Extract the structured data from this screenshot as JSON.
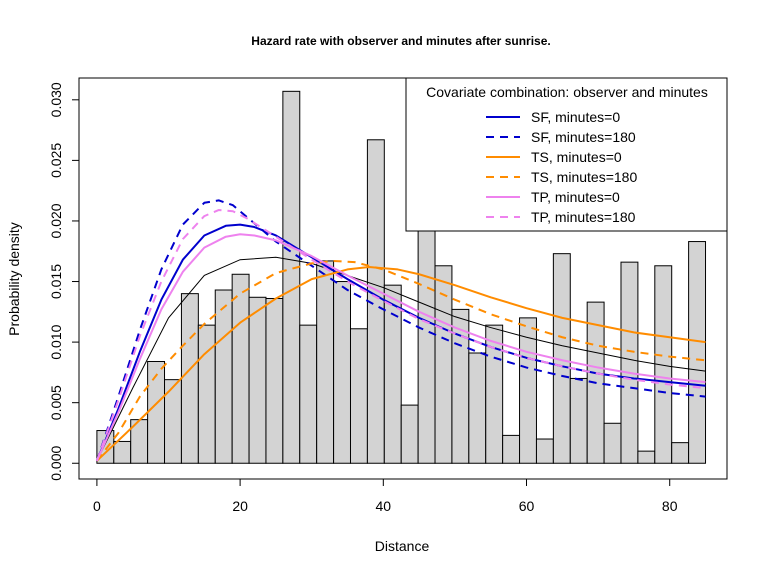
{
  "chart_data": {
    "type": "bar",
    "title": "Hazard rate with observer and minutes after sunrise.",
    "xlabel": "Distance",
    "ylabel": "Probability density",
    "xlim": [
      -2.5,
      88
    ],
    "ylim": [
      -0.0013,
      0.0318
    ],
    "xticks": [
      0,
      20,
      40,
      60,
      80
    ],
    "yticks": [
      0.0,
      0.005,
      0.01,
      0.015,
      0.02,
      0.025,
      0.03
    ],
    "ytick_labels": [
      "0.000",
      "0.005",
      "0.010",
      "0.015",
      "0.020",
      "0.025",
      "0.030"
    ],
    "histogram": {
      "bin_edges": [
        0,
        2.361,
        4.722,
        7.083,
        9.444,
        11.806,
        14.167,
        16.528,
        18.889,
        21.25,
        23.611,
        25.972,
        28.333,
        30.694,
        33.056,
        35.417,
        37.778,
        40.139,
        42.5,
        44.861,
        47.222,
        49.583,
        51.944,
        54.306,
        56.667,
        59.028,
        61.389,
        63.75,
        66.111,
        68.472,
        70.833,
        73.194,
        75.556,
        77.917,
        80.278,
        82.639,
        85
      ],
      "densities": [
        0.0027,
        0.0018,
        0.0036,
        0.0084,
        0.0069,
        0.014,
        0.0114,
        0.0143,
        0.0156,
        0.0137,
        0.0136,
        0.0307,
        0.0114,
        0.0167,
        0.015,
        0.0111,
        0.0267,
        0.0147,
        0.0048,
        0.0194,
        0.0163,
        0.0127,
        0.0091,
        0.0114,
        0.0023,
        0.012,
        0.002,
        0.0173,
        0.007,
        0.0133,
        0.0033,
        0.0166,
        0.001,
        0.0163,
        0.0017,
        0.0183
      ],
      "fill": "#d3d3d3"
    },
    "average_curve": {
      "x": [
        0,
        5,
        10,
        15,
        20,
        25,
        30,
        35,
        40,
        45,
        50,
        55,
        60,
        65,
        70,
        75,
        80,
        85
      ],
      "y": [
        0.0002,
        0.0062,
        0.012,
        0.0155,
        0.0168,
        0.017,
        0.0165,
        0.0155,
        0.0145,
        0.0133,
        0.0121,
        0.0112,
        0.0104,
        0.0097,
        0.0091,
        0.0085,
        0.008,
        0.0076
      ],
      "color": "#000000"
    },
    "series": [
      {
        "name": "SF, minutes=0",
        "color": "#0000cd",
        "dash": "solid",
        "x": [
          0,
          3,
          6,
          9,
          12,
          15,
          18,
          20,
          22,
          25,
          30,
          35,
          40,
          45,
          50,
          55,
          60,
          65,
          70,
          75,
          80,
          85
        ],
        "y": [
          0.0002,
          0.0045,
          0.0092,
          0.0135,
          0.0168,
          0.0188,
          0.0196,
          0.0197,
          0.0195,
          0.0188,
          0.017,
          0.0152,
          0.0135,
          0.012,
          0.0107,
          0.0096,
          0.0087,
          0.008,
          0.0074,
          0.007,
          0.0067,
          0.0064
        ]
      },
      {
        "name": "SF, minutes=180",
        "color": "#0000cd",
        "dash": "dashed",
        "x": [
          0,
          3,
          6,
          9,
          12,
          15,
          17,
          19,
          21,
          25,
          30,
          35,
          40,
          45,
          50,
          55,
          60,
          65,
          70,
          75,
          80,
          85
        ],
        "y": [
          0.0002,
          0.0055,
          0.011,
          0.016,
          0.0197,
          0.0215,
          0.0217,
          0.0213,
          0.0203,
          0.0183,
          0.0163,
          0.0143,
          0.0127,
          0.0112,
          0.0099,
          0.0088,
          0.0079,
          0.0072,
          0.0066,
          0.0062,
          0.0058,
          0.0055
        ]
      },
      {
        "name": "TS, minutes=0",
        "color": "#ff8c00",
        "dash": "solid",
        "x": [
          0,
          5,
          10,
          15,
          20,
          25,
          30,
          35,
          38,
          42,
          45,
          50,
          55,
          60,
          65,
          70,
          75,
          80,
          85
        ],
        "y": [
          0.0002,
          0.003,
          0.0059,
          0.009,
          0.0116,
          0.0136,
          0.0152,
          0.016,
          0.0162,
          0.016,
          0.0156,
          0.0147,
          0.0137,
          0.0128,
          0.012,
          0.0114,
          0.0108,
          0.0104,
          0.01
        ]
      },
      {
        "name": "TS, minutes=180",
        "color": "#ff8c00",
        "dash": "dashed",
        "x": [
          0,
          3,
          6,
          9,
          12,
          15,
          20,
          25,
          30,
          33,
          36,
          40,
          45,
          50,
          55,
          60,
          65,
          70,
          75,
          80,
          85
        ],
        "y": [
          0.0002,
          0.0025,
          0.0055,
          0.0078,
          0.0097,
          0.0115,
          0.014,
          0.0157,
          0.0165,
          0.0167,
          0.0166,
          0.016,
          0.0148,
          0.0135,
          0.0123,
          0.0113,
          0.0104,
          0.0097,
          0.0092,
          0.0088,
          0.0085
        ]
      },
      {
        "name": "TP, minutes=0",
        "color": "#ee82ee",
        "dash": "solid",
        "x": [
          0,
          3,
          6,
          9,
          12,
          15,
          18,
          20,
          22,
          25,
          30,
          35,
          40,
          45,
          50,
          55,
          60,
          65,
          70,
          75,
          80,
          85
        ],
        "y": [
          0.0002,
          0.0042,
          0.0086,
          0.0127,
          0.0158,
          0.0178,
          0.0187,
          0.0189,
          0.0188,
          0.0184,
          0.0171,
          0.0155,
          0.014,
          0.0125,
          0.0112,
          0.0101,
          0.0092,
          0.0085,
          0.0079,
          0.0074,
          0.007,
          0.0067
        ]
      },
      {
        "name": "TP, minutes=180",
        "color": "#ee82ee",
        "dash": "dashed",
        "x": [
          0,
          3,
          6,
          9,
          12,
          15,
          17,
          19,
          21,
          25,
          30,
          35,
          40,
          45,
          50,
          55,
          60,
          65,
          70,
          75,
          80,
          85
        ],
        "y": [
          0.0002,
          0.0052,
          0.0105,
          0.015,
          0.0185,
          0.0204,
          0.0209,
          0.0208,
          0.0202,
          0.0187,
          0.0168,
          0.015,
          0.0134,
          0.0119,
          0.0107,
          0.0096,
          0.0087,
          0.008,
          0.0074,
          0.0069,
          0.0065,
          0.0062
        ]
      }
    ],
    "legend": {
      "title": "Covariate combination: observer and minutes",
      "placement": "top-right"
    },
    "grid": false
  }
}
